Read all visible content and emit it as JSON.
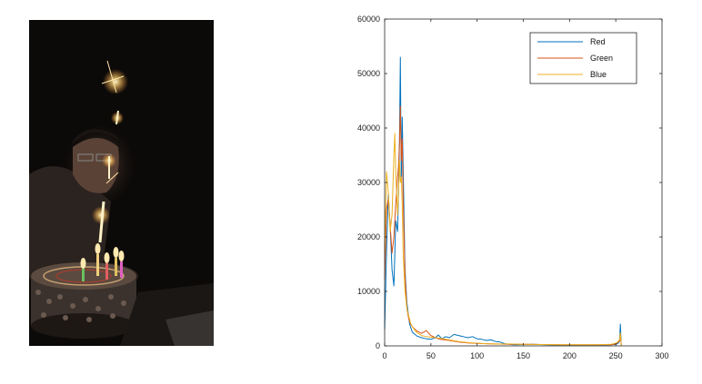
{
  "photo": {
    "description_icon": "photo-birthday-cake-icon"
  },
  "chart_data": {
    "type": "line",
    "xlim": [
      0,
      300
    ],
    "ylim": [
      0,
      60000
    ],
    "xticks": [
      "0",
      "50",
      "100",
      "150",
      "200",
      "250",
      "300"
    ],
    "yticks": [
      "0",
      "10000",
      "20000",
      "30000",
      "40000",
      "50000",
      "60000"
    ],
    "grid": false,
    "legend_position": "top-right",
    "series": [
      {
        "name": "Red",
        "color": "#0072BD",
        "points": [
          [
            0,
            3000
          ],
          [
            2,
            17000
          ],
          [
            4,
            28000
          ],
          [
            6,
            22000
          ],
          [
            8,
            14000
          ],
          [
            10,
            11000
          ],
          [
            12,
            23000
          ],
          [
            14,
            21000
          ],
          [
            15,
            28000
          ],
          [
            16,
            37000
          ],
          [
            17,
            53000
          ],
          [
            18,
            30000
          ],
          [
            19,
            42000
          ],
          [
            20,
            33000
          ],
          [
            22,
            14000
          ],
          [
            24,
            8000
          ],
          [
            27,
            4000
          ],
          [
            30,
            2500
          ],
          [
            35,
            1800
          ],
          [
            40,
            1500
          ],
          [
            45,
            1300
          ],
          [
            50,
            1200
          ],
          [
            55,
            1500
          ],
          [
            58,
            2000
          ],
          [
            62,
            1300
          ],
          [
            66,
            1700
          ],
          [
            70,
            1500
          ],
          [
            75,
            2100
          ],
          [
            80,
            1900
          ],
          [
            85,
            1700
          ],
          [
            90,
            1500
          ],
          [
            95,
            1700
          ],
          [
            100,
            1300
          ],
          [
            105,
            1200
          ],
          [
            110,
            1000
          ],
          [
            115,
            1100
          ],
          [
            120,
            800
          ],
          [
            125,
            700
          ],
          [
            130,
            400
          ],
          [
            140,
            200
          ],
          [
            150,
            250
          ],
          [
            160,
            300
          ],
          [
            175,
            200
          ],
          [
            190,
            150
          ],
          [
            210,
            150
          ],
          [
            230,
            150
          ],
          [
            245,
            200
          ],
          [
            250,
            300
          ],
          [
            252,
            400
          ],
          [
            254,
            800
          ],
          [
            255,
            4000
          ],
          [
            256,
            0
          ]
        ]
      },
      {
        "name": "Green",
        "color": "#D95319",
        "points": [
          [
            0,
            12000
          ],
          [
            2,
            25000
          ],
          [
            4,
            27000
          ],
          [
            6,
            22000
          ],
          [
            8,
            17000
          ],
          [
            10,
            20000
          ],
          [
            12,
            26000
          ],
          [
            14,
            31000
          ],
          [
            15,
            33000
          ],
          [
            16,
            37000
          ],
          [
            17,
            44000
          ],
          [
            18,
            34000
          ],
          [
            19,
            38000
          ],
          [
            20,
            27000
          ],
          [
            22,
            13000
          ],
          [
            24,
            7000
          ],
          [
            26,
            5000
          ],
          [
            28,
            4000
          ],
          [
            30,
            3500
          ],
          [
            35,
            2700
          ],
          [
            40,
            2300
          ],
          [
            45,
            2800
          ],
          [
            50,
            1900
          ],
          [
            55,
            1500
          ],
          [
            60,
            1200
          ],
          [
            70,
            1000
          ],
          [
            80,
            700
          ],
          [
            90,
            550
          ],
          [
            100,
            450
          ],
          [
            110,
            400
          ],
          [
            120,
            350
          ],
          [
            135,
            300
          ],
          [
            150,
            300
          ],
          [
            170,
            250
          ],
          [
            190,
            200
          ],
          [
            210,
            200
          ],
          [
            230,
            200
          ],
          [
            245,
            200
          ],
          [
            250,
            350
          ],
          [
            252,
            600
          ],
          [
            254,
            900
          ],
          [
            255,
            1800
          ],
          [
            256,
            0
          ]
        ]
      },
      {
        "name": "Blue",
        "color": "#EDB120",
        "points": [
          [
            0,
            17000
          ],
          [
            2,
            32000
          ],
          [
            4,
            28000
          ],
          [
            6,
            21000
          ],
          [
            8,
            24000
          ],
          [
            10,
            35000
          ],
          [
            11,
            39000
          ],
          [
            12,
            32000
          ],
          [
            14,
            24000
          ],
          [
            15,
            28000
          ],
          [
            16,
            34000
          ],
          [
            17,
            30000
          ],
          [
            18,
            31000
          ],
          [
            19,
            26000
          ],
          [
            20,
            17000
          ],
          [
            22,
            10000
          ],
          [
            24,
            7000
          ],
          [
            26,
            5500
          ],
          [
            28,
            4200
          ],
          [
            30,
            3500
          ],
          [
            35,
            2400
          ],
          [
            40,
            1900
          ],
          [
            45,
            1700
          ],
          [
            50,
            1600
          ],
          [
            55,
            1500
          ],
          [
            60,
            1400
          ],
          [
            70,
            1100
          ],
          [
            80,
            800
          ],
          [
            90,
            600
          ],
          [
            100,
            500
          ],
          [
            110,
            400
          ],
          [
            120,
            350
          ],
          [
            135,
            350
          ],
          [
            150,
            300
          ],
          [
            170,
            250
          ],
          [
            190,
            200
          ],
          [
            210,
            200
          ],
          [
            230,
            200
          ],
          [
            245,
            300
          ],
          [
            250,
            500
          ],
          [
            252,
            700
          ],
          [
            254,
            1100
          ],
          [
            255,
            2400
          ],
          [
            256,
            0
          ]
        ]
      }
    ]
  }
}
